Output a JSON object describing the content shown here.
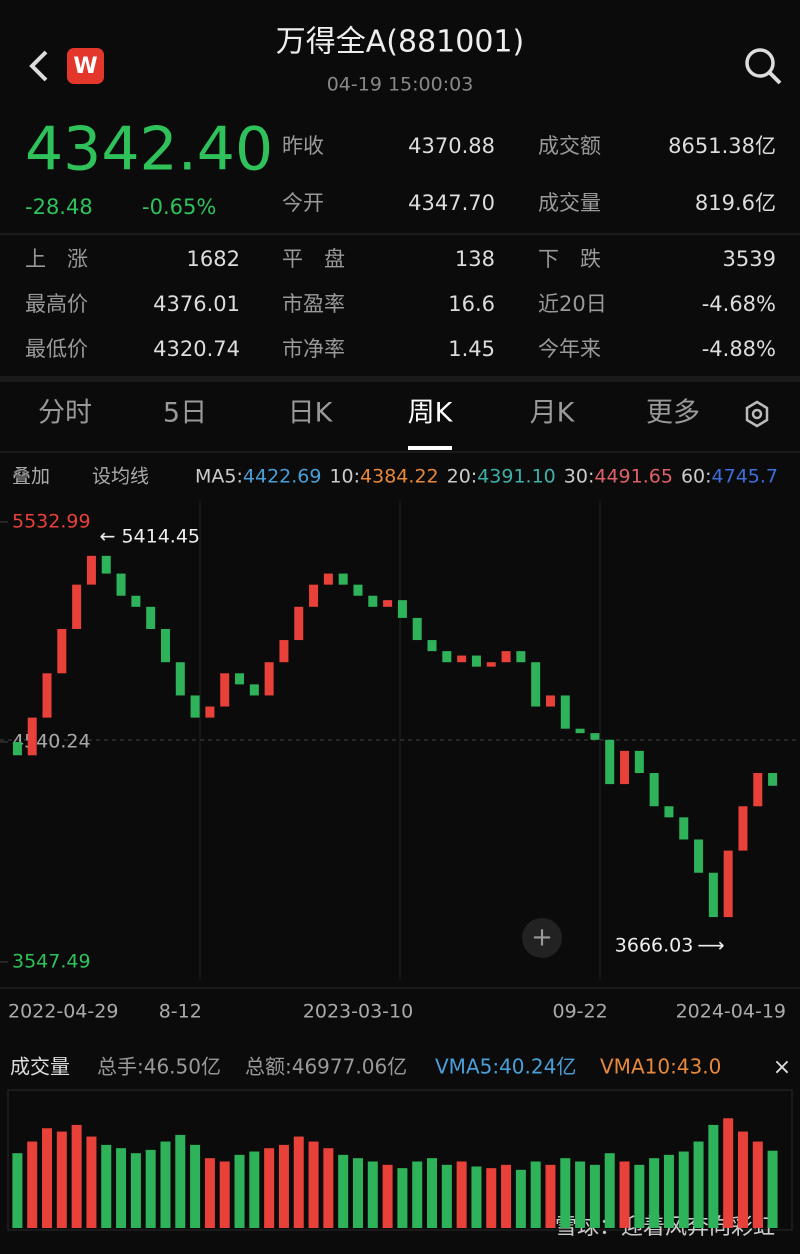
{
  "header": {
    "title": "万得全A(881001)",
    "time": "04-19 15:00:03",
    "logo": "W"
  },
  "quote": {
    "price": "4342.40",
    "change": "-28.48",
    "change_pct": "-0.65%",
    "items": [
      {
        "label": "昨收",
        "value": "4370.88"
      },
      {
        "label": "成交额",
        "value": "8651.38亿"
      },
      {
        "label": "今开",
        "value": "4347.70"
      },
      {
        "label": "成交量",
        "value": "819.6亿"
      }
    ]
  },
  "stats": [
    {
      "label": "上　涨",
      "value": "1682"
    },
    {
      "label": "平　盘",
      "value": "138"
    },
    {
      "label": "下　跌",
      "value": "3539"
    },
    {
      "label": "最高价",
      "value": "4376.01"
    },
    {
      "label": "市盈率",
      "value": "16.6"
    },
    {
      "label": "近20日",
      "value": "-4.68%"
    },
    {
      "label": "最低价",
      "value": "4320.74"
    },
    {
      "label": "市净率",
      "value": "1.45"
    },
    {
      "label": "今年来",
      "value": "-4.88%"
    }
  ],
  "tabs": [
    "分时",
    "5日",
    "日K",
    "周K",
    "月K",
    "更多"
  ],
  "overlay": {
    "add": "叠加",
    "set_ma": "设均线",
    "ma": [
      {
        "name": "MA5:",
        "value": "4422.69",
        "color": "#4a9fd8"
      },
      {
        "name": "10:",
        "value": "4384.22",
        "color": "#e8883a"
      },
      {
        "name": "20:",
        "value": "4391.10",
        "color": "#3fb0a8"
      },
      {
        "name": "30:",
        "value": "4491.65",
        "color": "#e0606a"
      },
      {
        "name": "60:",
        "value": "4745.7",
        "color": "#3d6fd8"
      }
    ]
  },
  "chart_data": {
    "type": "candlestick",
    "categories": [
      "2022-04-29",
      null,
      null,
      null,
      null,
      null,
      null,
      null,
      null,
      null,
      null,
      "8-12",
      null,
      null,
      null,
      null,
      null,
      null,
      null,
      null,
      null,
      null,
      null,
      "2023-03-10",
      null,
      null,
      null,
      null,
      null,
      null,
      null,
      null,
      null,
      null,
      null,
      null,
      null,
      null,
      "09-22",
      null,
      null,
      null,
      null,
      null,
      null,
      null,
      null,
      null,
      null,
      null,
      null,
      "2024-04-19"
    ],
    "open": [
      4540,
      4480,
      4650,
      4850,
      5050,
      5250,
      5380,
      5300,
      5200,
      5150,
      5050,
      4900,
      4750,
      4650,
      4700,
      4850,
      4800,
      4750,
      4900,
      5000,
      5150,
      5250,
      5300,
      5250,
      5200,
      5150,
      5180,
      5100,
      5000,
      4950,
      4900,
      4930,
      4880,
      4900,
      4950,
      4900,
      4700,
      4750,
      4600,
      4580,
      4550,
      4350,
      4500,
      4400,
      4250,
      4200,
      4100,
      3950,
      3750,
      4050,
      4250,
      4400
    ],
    "close": [
      4480,
      4650,
      4850,
      5050,
      5250,
      5380,
      5300,
      5200,
      5150,
      5050,
      4900,
      4750,
      4650,
      4700,
      4850,
      4800,
      4750,
      4900,
      5000,
      5150,
      5250,
      5300,
      5250,
      5200,
      5150,
      5180,
      5100,
      5000,
      4950,
      4900,
      4930,
      4880,
      4900,
      4950,
      4900,
      4700,
      4750,
      4600,
      4580,
      4550,
      4350,
      4500,
      4400,
      4250,
      4200,
      4100,
      3950,
      3750,
      4050,
      4250,
      4400,
      4342.4
    ],
    "up_color": "#e8413a",
    "down_color": "#2fb35a",
    "ylim": [
      3466,
      5632
    ],
    "yticks": [
      5532.99,
      4540.24,
      3547.49
    ],
    "high_label": "5414.45",
    "low_label": "3666.03"
  },
  "volume": {
    "title": "成交量",
    "total_hand": "总手:46.50亿",
    "total_amount": "总额:46977.06亿",
    "vma5": "VMA5:40.24亿",
    "vma10": "VMA10:43.0",
    "values": [
      45,
      52,
      60,
      58,
      62,
      55,
      50,
      48,
      45,
      47,
      52,
      56,
      50,
      42,
      40,
      44,
      46,
      48,
      50,
      55,
      52,
      48,
      44,
      42,
      40,
      38,
      36,
      40,
      42,
      38,
      40,
      37,
      36,
      38,
      35,
      40,
      38,
      42,
      40,
      38,
      45,
      40,
      38,
      42,
      44,
      46,
      52,
      62,
      66,
      58,
      52,
      46.5
    ],
    "ylim": [
      0,
      80
    ]
  },
  "watermark": "雪球：迎着风奔向彩虹"
}
